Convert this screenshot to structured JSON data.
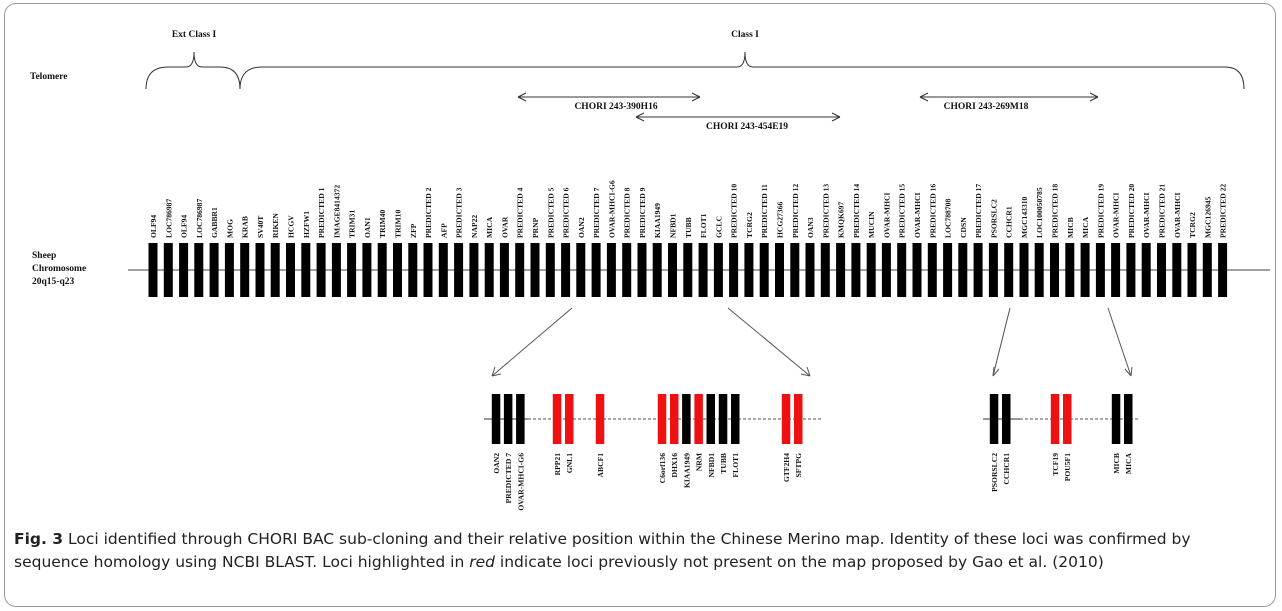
{
  "headers": {
    "ext_class": "Ext Class I",
    "class_one": "Class I",
    "telomere": "Telomere"
  },
  "chromosome": {
    "label_lines": [
      "Sheep",
      "Chromosome",
      "20q15-q23"
    ],
    "loci": [
      "OLF94",
      "LOC786987",
      "OLF94",
      "LOC786987",
      "GABBR1",
      "MOG",
      "KRAB",
      "SV40T",
      "RIKEN",
      "HCGV",
      "HZFW1",
      "PREDICTED 1",
      "IMAGE8414372",
      "TRIM31",
      "OAN1",
      "TRIM40",
      "TRIM10",
      "ZFP",
      "PREDICTED 2",
      "AFP",
      "PREDICTED 3",
      "NAP22",
      "MICA",
      "OVAR",
      "PREDICTED 4",
      "PRNP",
      "PREDICTED 5",
      "PREDICTED 6",
      "OAN2",
      "PREDICTED 7",
      "OVAR-MHCI-G6",
      "PREDICTED 8",
      "PREDICTED 9",
      "KIAA1949",
      "NFBD1",
      "TUBB",
      "FLOT1",
      "GCLC",
      "PREDICTED 10",
      "TCRG2",
      "PREDICTED 11",
      "HCG27366",
      "PREDICTED 12",
      "OAN3",
      "PREDICTED 13",
      "KMQK697",
      "PREDICTED 14",
      "MUCIN",
      "OVAR-MHCI",
      "PREDICTED 15",
      "OVAR-MHCI",
      "PREDICTED 16",
      "LOC788708",
      "CDSN",
      "PREDICTED 17",
      "PSORSLC2",
      "CCHCR1",
      "MGC143310",
      "LOC100050785",
      "PREDICTED 18",
      "MICB",
      "MICA",
      "PREDICTED 19",
      "OVAR-MHCI",
      "PREDICTED 20",
      "OVAR-MHCI",
      "PREDICTED 21",
      "OVAR-MHCI",
      "TCRG2",
      "MGC126945",
      "PREDICTED 22"
    ]
  },
  "bacs": [
    {
      "name": "CHORI 243-390H16"
    },
    {
      "name": "CHORI 243-454E19"
    },
    {
      "name": "CHORI 243-269M18"
    }
  ],
  "subclone_groups": [
    {
      "loci": [
        {
          "name": "OAN2",
          "novel": false
        },
        {
          "name": "PREDICTED 7",
          "novel": false
        },
        {
          "name": "OVAR-MHCI-G6",
          "novel": false
        }
      ]
    },
    {
      "loci": [
        {
          "name": "RPP21",
          "novel": true
        },
        {
          "name": "GNL1",
          "novel": true
        }
      ]
    },
    {
      "loci": [
        {
          "name": "ABCF1",
          "novel": true
        }
      ]
    },
    {
      "loci": [
        {
          "name": "C6orf136",
          "novel": true
        },
        {
          "name": "DHX16",
          "novel": true
        },
        {
          "name": "KIAA1949",
          "novel": false
        },
        {
          "name": "NRM",
          "novel": true
        },
        {
          "name": "NFBD1",
          "novel": false
        },
        {
          "name": "TUBB",
          "novel": false
        },
        {
          "name": "FLOT1",
          "novel": false
        }
      ]
    },
    {
      "loci": [
        {
          "name": "GTF2H4",
          "novel": true
        },
        {
          "name": "SFTPG",
          "novel": true
        }
      ]
    },
    {
      "loci": [
        {
          "name": "PSORSLC2",
          "novel": false
        },
        {
          "name": "CCHCR1",
          "novel": false
        }
      ]
    },
    {
      "loci": [
        {
          "name": "TCF19",
          "novel": true
        },
        {
          "name": "POU5F1",
          "novel": true
        }
      ]
    },
    {
      "loci": [
        {
          "name": "MICB",
          "novel": false
        },
        {
          "name": "MICA",
          "novel": false
        }
      ]
    }
  ],
  "colors": {
    "known": "#000000",
    "novel": "#ee1111"
  },
  "caption": {
    "fig": "Fig. 3",
    "text1": " Loci identified through CHORI BAC sub-cloning and their relative position within the Chinese Merino map. Identity of these loci was confirmed by sequence homology using NCBI BLAST. Loci highlighted in ",
    "red_word": "red",
    "text2": " indicate loci previously not present on the map proposed by Gao et al. (2010)"
  }
}
